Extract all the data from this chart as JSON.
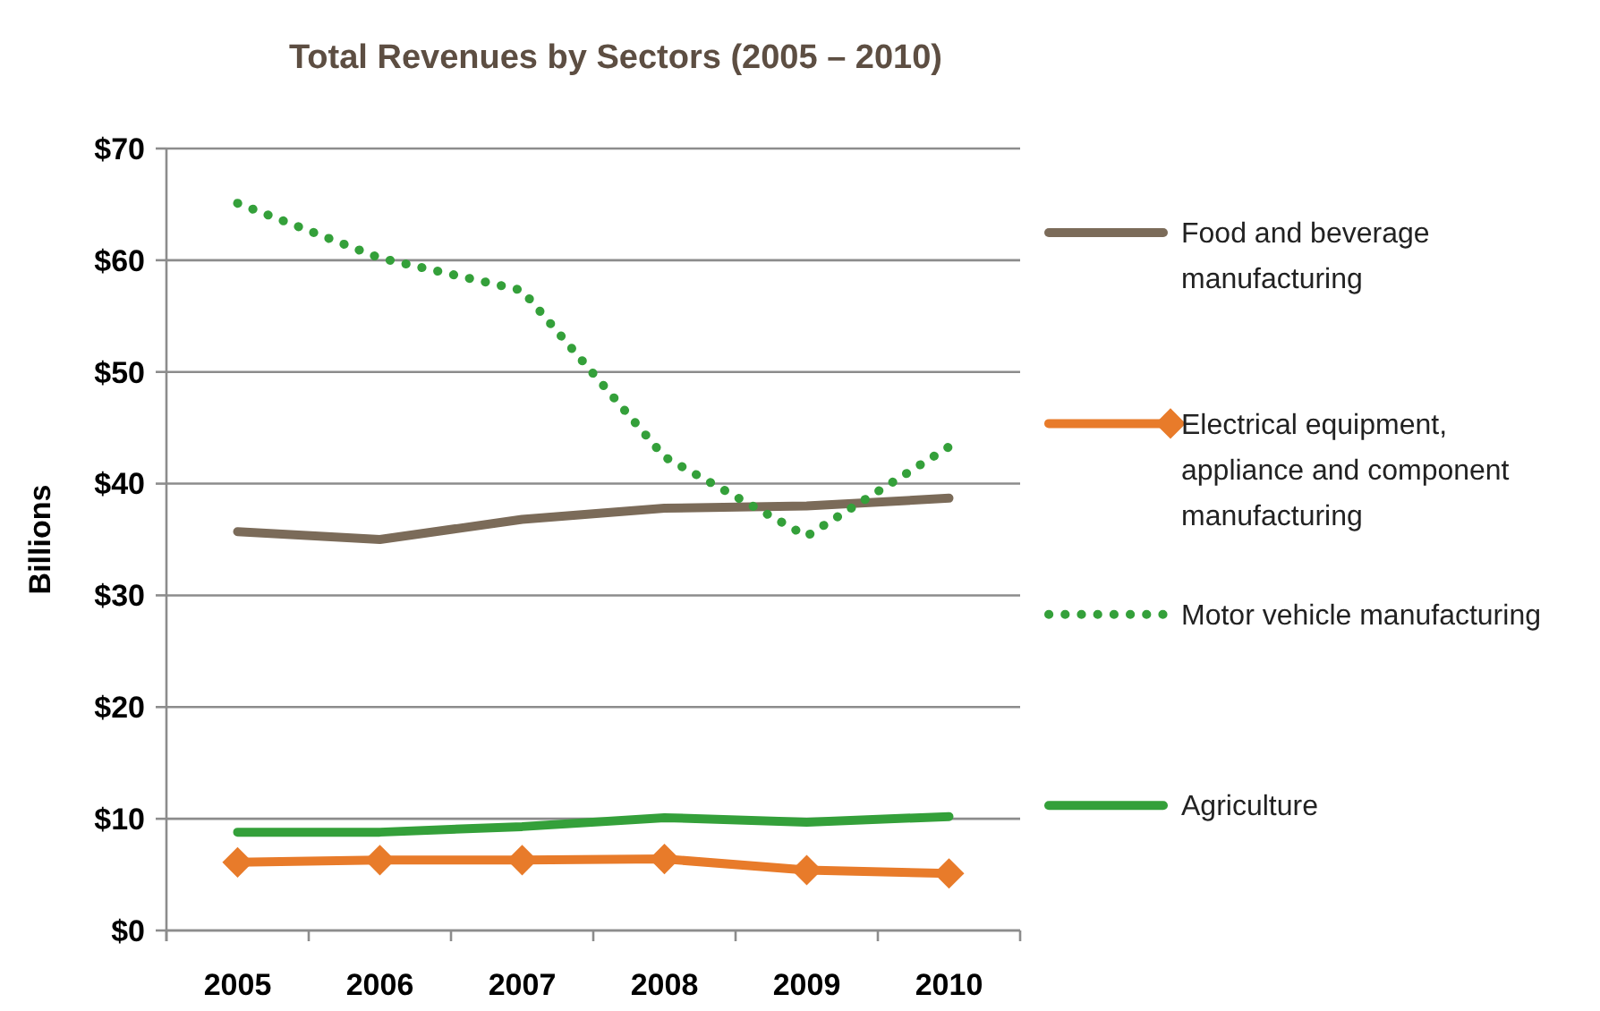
{
  "chart_data": {
    "type": "line",
    "title": "Total Revenues by Sectors (2005 – 2010)",
    "ylabel": "Billions",
    "categories": [
      "2005",
      "2006",
      "2007",
      "2008",
      "2009",
      "2010"
    ],
    "series": [
      {
        "name": "Food and beverage manufacturing",
        "color": "#7b6b59",
        "values": [
          35.7,
          35.0,
          36.8,
          37.8,
          38.0,
          38.7
        ]
      },
      {
        "name": "Electrical equipment, appliance and component manufacturing",
        "color": "#e87b2a",
        "marker": "diamond",
        "values": [
          6.1,
          6.3,
          6.3,
          6.4,
          5.4,
          5.1
        ]
      },
      {
        "name": "Motor vehicle manufacturing",
        "color": "#34a03a",
        "line_style": "dotted",
        "values": [
          65.1,
          60.2,
          57.3,
          42.4,
          35.3,
          43.3
        ]
      },
      {
        "name": "Agriculture",
        "color": "#34a03a",
        "values": [
          8.8,
          8.8,
          9.3,
          10.1,
          9.7,
          10.2
        ]
      }
    ],
    "ylim": [
      0,
      70
    ],
    "yticks": [
      {
        "value": 0,
        "label": "$0"
      },
      {
        "value": 10,
        "label": "$10"
      },
      {
        "value": 20,
        "label": "$20"
      },
      {
        "value": 30,
        "label": "$30"
      },
      {
        "value": 40,
        "label": "$40"
      },
      {
        "value": 50,
        "label": "$50"
      },
      {
        "value": 60,
        "label": "$60"
      },
      {
        "value": 70,
        "label": "$70"
      }
    ],
    "grid": "y",
    "legend": "right"
  }
}
